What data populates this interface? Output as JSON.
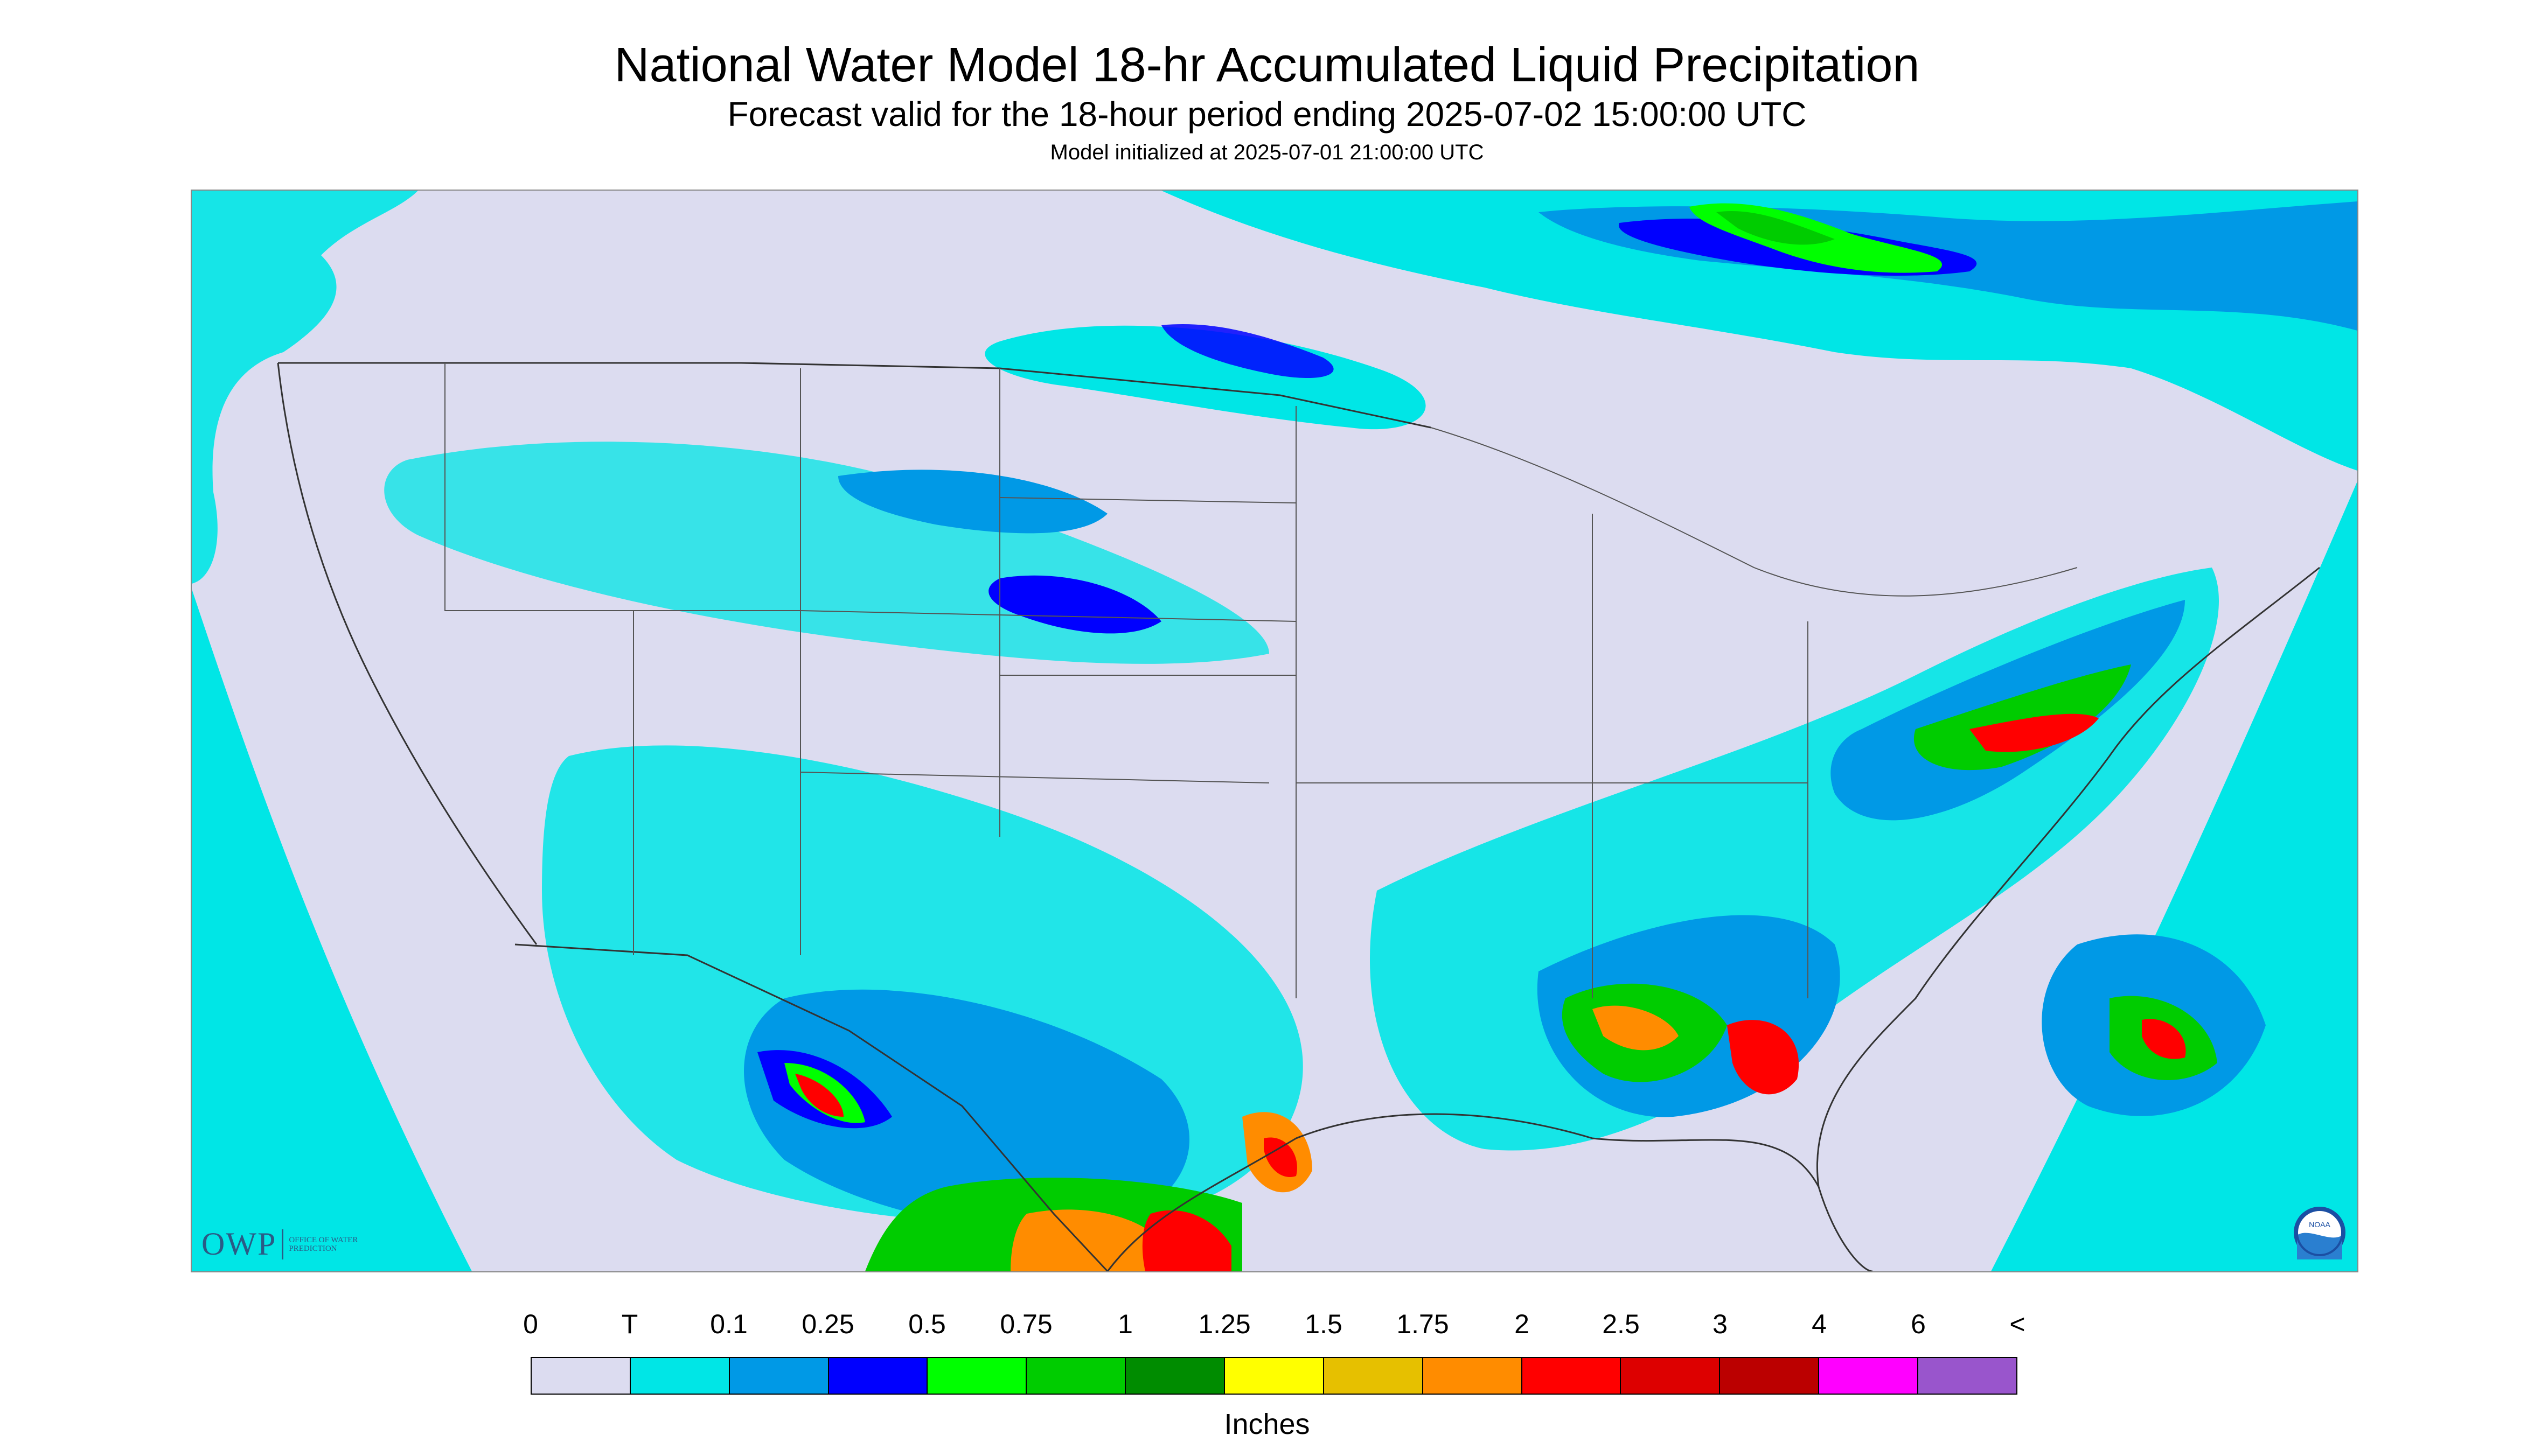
{
  "header": {
    "title": "National Water Model 18-hr Accumulated Liquid Precipitation",
    "subtitle": "Forecast valid for the 18-hour period ending 2025-07-02 15:00:00 UTC",
    "init": "Model initialized at 2025-07-01 21:00:00 UTC"
  },
  "logos": {
    "owp_main": "OWP",
    "owp_sub": "OFFICE OF WATER PREDICTION",
    "noaa_text": "NOAA"
  },
  "legend": {
    "labels": [
      "0",
      "T",
      "0.1",
      "0.25",
      "0.5",
      "0.75",
      "1",
      "1.25",
      "1.5",
      "1.75",
      "2",
      "2.5",
      "3",
      "4",
      "6",
      "<"
    ],
    "colors": [
      "#dcdcf0",
      "#00e6e6",
      "#0099e6",
      "#0000ff",
      "#00ff00",
      "#00cc00",
      "#008c00",
      "#ffff00",
      "#e6c000",
      "#ff8c00",
      "#ff0000",
      "#dd0000",
      "#bb0000",
      "#ff00ff",
      "#9955cc"
    ],
    "units": "Inches"
  }
}
